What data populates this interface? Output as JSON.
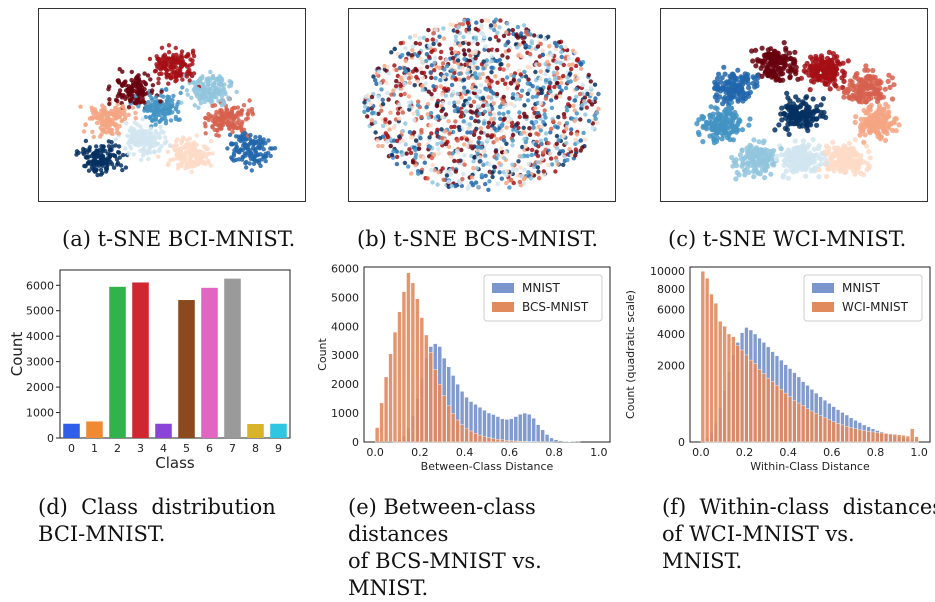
{
  "captions": {
    "a": "(a) t-SNE BCI-MNIST.",
    "b": "(b) t-SNE BCS-MNIST.",
    "c": "(c) t-SNE WCI-MNIST.",
    "d_line1": "(d)  Class  distribution",
    "d_line2": "BCI-MNIST.",
    "e_line1": "(e) Between-class distances",
    "e_line2": "of BCS-MNIST vs. MNIST.",
    "f_line1": "(f)  Within-class  distances",
    "f_line2": "of WCI-MNIST vs. MNIST."
  },
  "palette": {
    "tsne": [
      "#67000d",
      "#a50f15",
      "#d6604d",
      "#f4a582",
      "#fddbc7",
      "#d1e5f0",
      "#92c5de",
      "#4393c3",
      "#2166ac",
      "#053061"
    ],
    "mnist": "#7b96cc",
    "orange": "#e08a5e"
  },
  "chart_data": [
    {
      "id": "d",
      "type": "bar",
      "categories": [
        "0",
        "1",
        "2",
        "3",
        "4",
        "5",
        "6",
        "7",
        "8",
        "9"
      ],
      "values": [
        560,
        650,
        5940,
        6110,
        560,
        5420,
        5900,
        6260,
        550,
        560
      ],
      "colors": [
        "#2f5ee8",
        "#ef8a33",
        "#2fb34a",
        "#d0262f",
        "#8a45d6",
        "#8b4a1d",
        "#e066c2",
        "#9a9a9a",
        "#d8b42a",
        "#2ec6e0"
      ],
      "xlabel": "Class",
      "ylabel": "Count",
      "ylim": [
        0,
        6600
      ],
      "yticks": [
        0,
        1000,
        2000,
        3000,
        4000,
        5000,
        6000
      ]
    },
    {
      "id": "e",
      "type": "bar",
      "subtype": "histogram",
      "bin_width": 0.02,
      "x": [
        0.0,
        0.02,
        0.04,
        0.06,
        0.08,
        0.1,
        0.12,
        0.14,
        0.16,
        0.18,
        0.2,
        0.22,
        0.24,
        0.26,
        0.28,
        0.3,
        0.32,
        0.34,
        0.36,
        0.38,
        0.4,
        0.42,
        0.44,
        0.46,
        0.48,
        0.5,
        0.52,
        0.54,
        0.56,
        0.58,
        0.6,
        0.62,
        0.64,
        0.66,
        0.68,
        0.7,
        0.72,
        0.74,
        0.76,
        0.78,
        0.8,
        0.82,
        0.84,
        0.86,
        0.88,
        0.9
      ],
      "series": [
        {
          "name": "MNIST",
          "values": [
            0,
            0,
            0,
            0,
            20,
            80,
            200,
            480,
            900,
            1500,
            2200,
            2900,
            3300,
            3400,
            3300,
            2900,
            2600,
            2300,
            2000,
            1750,
            1550,
            1400,
            1300,
            1200,
            1100,
            1000,
            950,
            880,
            800,
            780,
            800,
            880,
            960,
            1000,
            960,
            820,
            600,
            420,
            260,
            140,
            80,
            40,
            20,
            10,
            5,
            2
          ]
        },
        {
          "name": "BCS-MNIST",
          "values": [
            500,
            1350,
            2250,
            3050,
            3800,
            4500,
            5200,
            5850,
            5500,
            4950,
            4300,
            3700,
            3100,
            2500,
            2000,
            1600,
            1250,
            980,
            760,
            600,
            480,
            380,
            300,
            240,
            190,
            150,
            120,
            95,
            75,
            60,
            45,
            35,
            25,
            18,
            12,
            8,
            5,
            3,
            2,
            1,
            0,
            0,
            0,
            0,
            0,
            0
          ]
        }
      ],
      "xlabel": "Between-Class Distance",
      "ylabel": "Count",
      "xlim": [
        -0.05,
        1.05
      ],
      "ylim": [
        0,
        6050
      ],
      "xticks": [
        0.0,
        0.2,
        0.4,
        0.6,
        0.8,
        1.0
      ],
      "yticks": [
        0,
        1000,
        2000,
        3000,
        4000,
        5000,
        6000
      ],
      "legend": "top-right"
    },
    {
      "id": "f",
      "type": "bar",
      "subtype": "histogram",
      "bin_width": 0.02,
      "y_scale": "quadratic",
      "x": [
        0.0,
        0.02,
        0.04,
        0.06,
        0.08,
        0.1,
        0.12,
        0.14,
        0.16,
        0.18,
        0.2,
        0.22,
        0.24,
        0.26,
        0.28,
        0.3,
        0.32,
        0.34,
        0.36,
        0.38,
        0.4,
        0.42,
        0.44,
        0.46,
        0.48,
        0.5,
        0.52,
        0.54,
        0.56,
        0.58,
        0.6,
        0.62,
        0.64,
        0.66,
        0.68,
        0.7,
        0.72,
        0.74,
        0.76,
        0.78,
        0.8,
        0.82,
        0.84,
        0.86,
        0.88,
        0.9,
        0.92,
        0.94,
        0.96,
        0.98
      ],
      "series": [
        {
          "name": "MNIST",
          "values": [
            0,
            5,
            30,
            120,
            400,
            900,
            1700,
            2600,
            3400,
            4100,
            4500,
            4300,
            4000,
            3700,
            3400,
            3100,
            2800,
            2550,
            2300,
            2050,
            1850,
            1650,
            1450,
            1250,
            1100,
            950,
            820,
            700,
            600,
            510,
            430,
            360,
            300,
            250,
            200,
            160,
            130,
            100,
            80,
            60,
            45,
            35,
            25,
            18,
            12,
            8,
            5,
            3,
            2,
            1
          ]
        },
        {
          "name": "WCI-MNIST",
          "values": [
            10000,
            9200,
            7500,
            6600,
            5000,
            4600,
            4000,
            3800,
            3200,
            2900,
            2600,
            2300,
            2100,
            1800,
            1600,
            1400,
            1250,
            1100,
            950,
            820,
            700,
            600,
            520,
            450,
            380,
            330,
            280,
            240,
            200,
            170,
            140,
            120,
            100,
            85,
            70,
            60,
            50,
            45,
            40,
            35,
            30,
            28,
            25,
            22,
            20,
            18,
            15,
            12,
            60,
            10
          ]
        }
      ],
      "xlabel": "Within-Class Distance",
      "ylabel": "Count (quadratic scale)",
      "xlim": [
        -0.05,
        1.05
      ],
      "ylim": [
        0,
        10500
      ],
      "xticks": [
        0.0,
        0.2,
        0.4,
        0.6,
        0.8,
        1.0
      ],
      "yticks": [
        0,
        2000,
        4000,
        6000,
        8000,
        10000
      ],
      "legend": "top-right"
    }
  ]
}
